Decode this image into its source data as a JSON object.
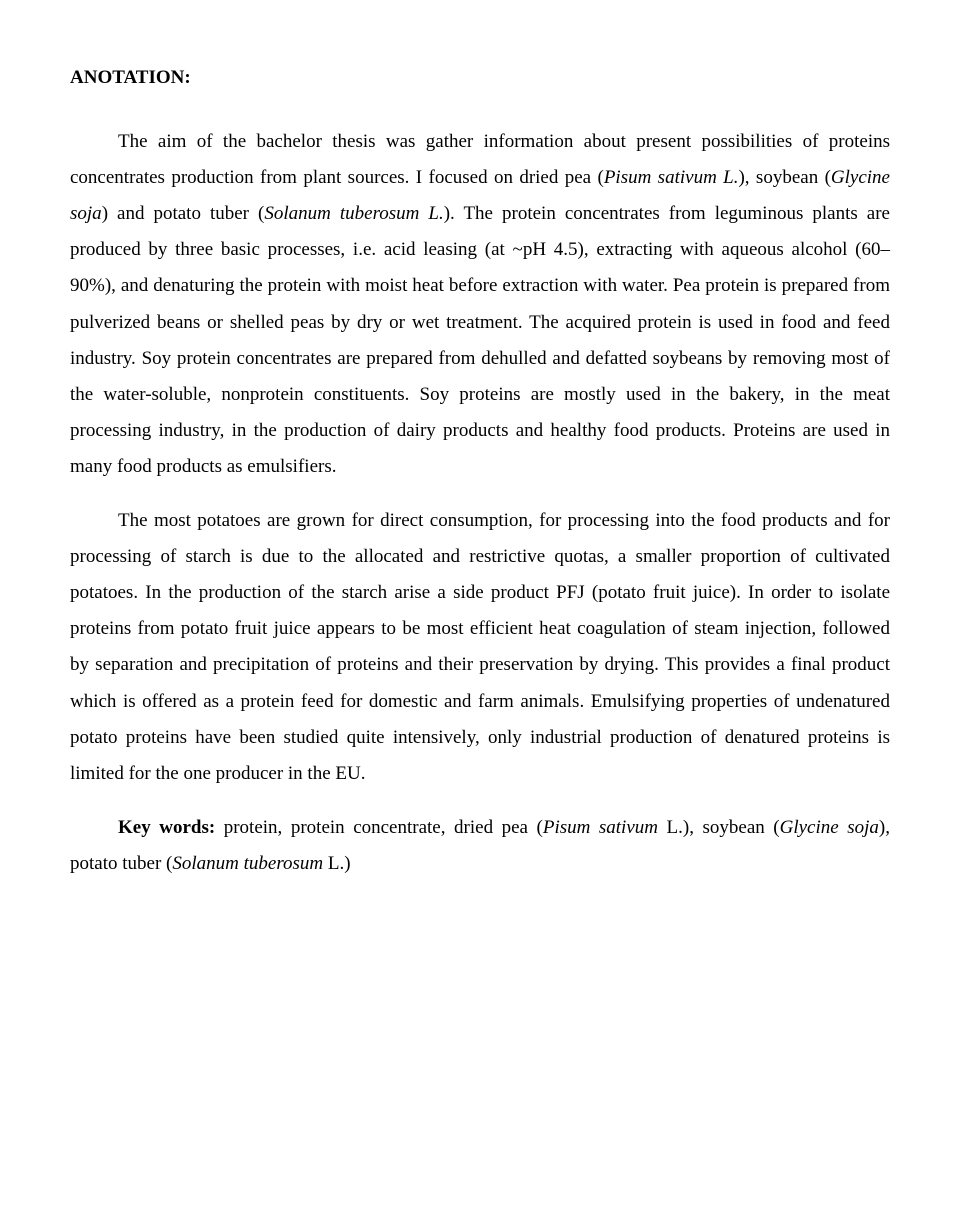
{
  "heading": "ANOTATION:",
  "p1": {
    "t1": "The aim of the bachelor thesis was gather information about present possibilities of proteins concentrates production from plant sources. I focused on dried pea (",
    "i1": "Pisum sativum L.",
    "t2": "), soybean (",
    "i2": "Glycine soja",
    "t3": ") and potato tuber (",
    "i3": "Solanum tuberosum L.",
    "t4": "). The protein concentrates from leguminous plants are produced by three basic processes, i.e. acid leasing (at ~pH 4.5), extracting with aqueous alcohol (60–90%), and denaturing the protein with moist heat before extraction with water. Pea protein is prepared from pulverized beans or shelled peas by dry or wet treatment.  The acquired protein is used in food and feed industry. Soy protein concentrates are prepared from dehulled and defatted soybeans by removing most of the water-soluble, nonprotein constituents. Soy proteins are mostly used in the bakery, in the meat processing industry, in the production of dairy products and healthy food products. Proteins are used in many food products as emulsifiers."
  },
  "p2": "The most potatoes are grown for direct consumption, for processing into the food products and for processing of starch is due to the allocated and restrictive quotas, a smaller proportion of cultivated potatoes. In the production of the starch arise a side product PFJ (potato fruit juice). In order to isolate proteins from potato fruit juice appears to be most efficient heat coagulation of steam injection, followed by separation and precipitation of proteins and their preservation by drying. This provides a final product which is offered as a protein feed for domestic and farm animals. Emulsifying properties of undenatured potato proteins have been studied quite intensively, only industrial production of denatured proteins is limited for the one producer in the EU.",
  "p3": {
    "kw_label": "Key words: ",
    "t1": "protein, protein concentrate, dried pea (",
    "i1": "Pisum sativum ",
    "t2": "L.), soybean (",
    "i2": "Glycine soja",
    "t3": "), potato tuber (",
    "i3": "Solanum tuberosum ",
    "t4": "L.)"
  }
}
